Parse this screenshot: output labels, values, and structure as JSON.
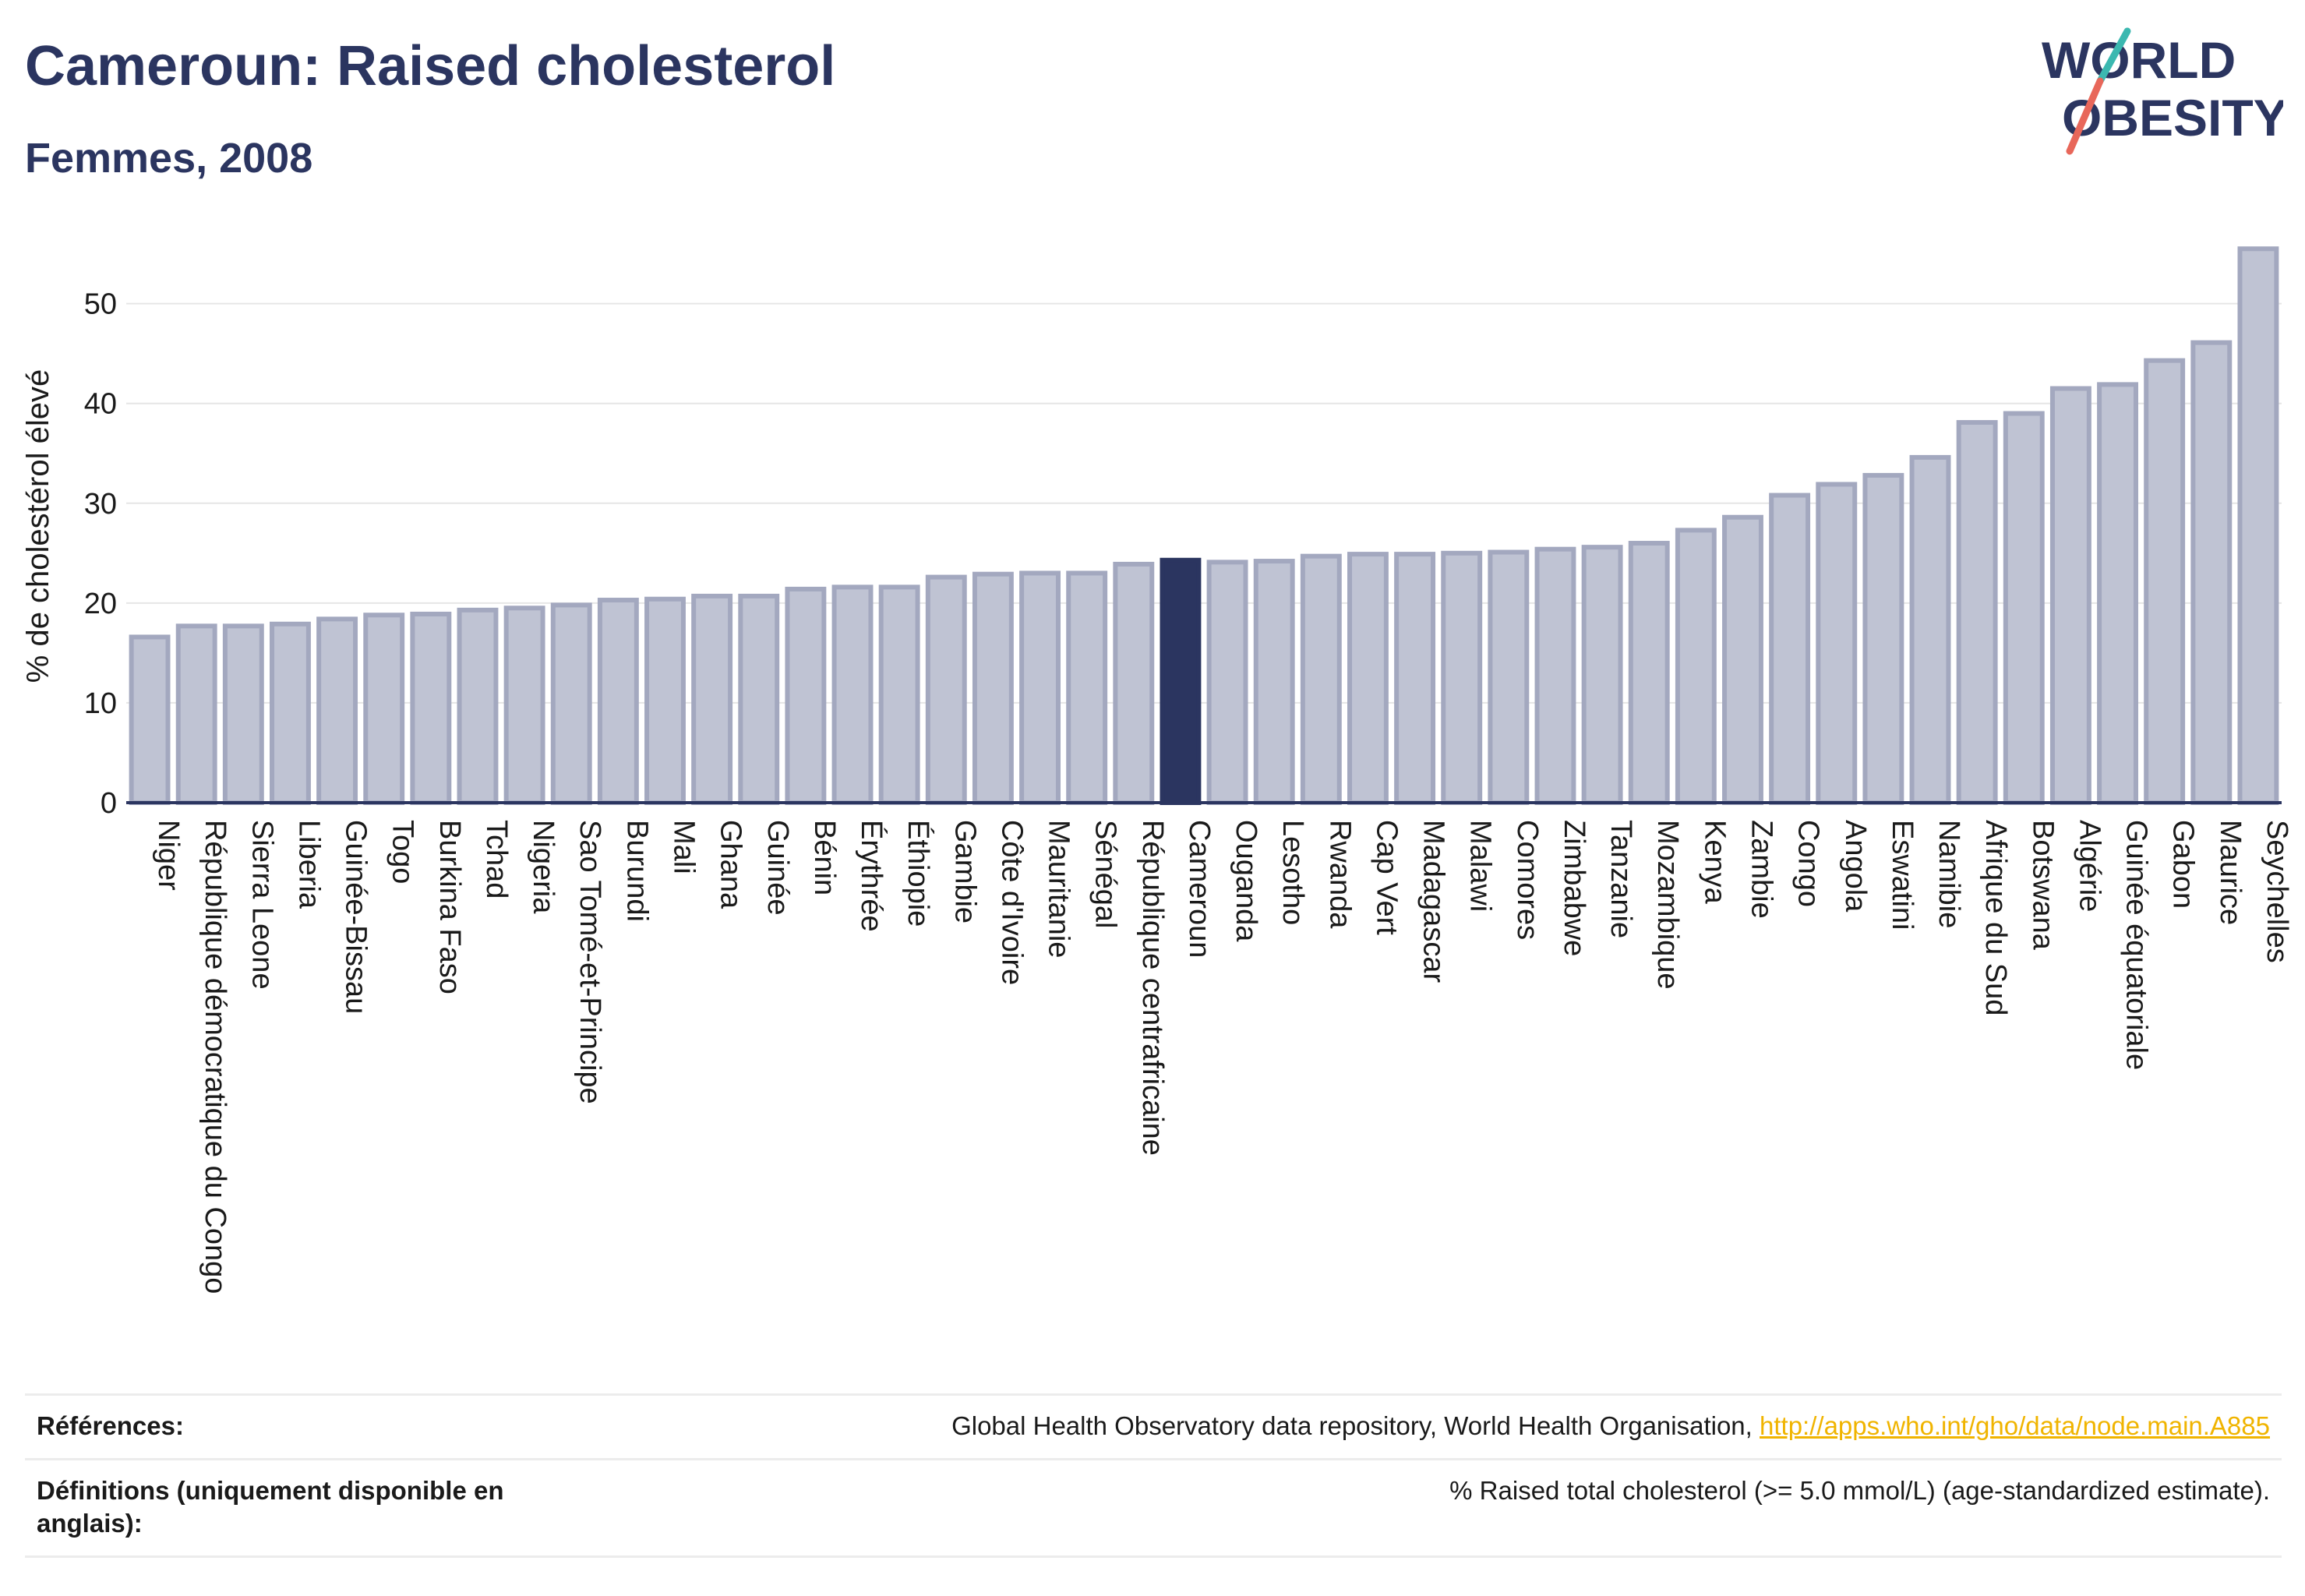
{
  "header": {
    "title": "Cameroun: Raised cholesterol",
    "subtitle": "Femmes, 2008"
  },
  "logo": {
    "line1": "WORLD",
    "line2": "OBESITY"
  },
  "colors": {
    "bar": "#bfc3d3",
    "bar_stroke": "#a3a8bf",
    "highlight": "#2b3560",
    "text": "#1a1a1a",
    "title": "#2b3560",
    "grid": "#e6e6e6",
    "logo_teal": "#3bb8b0",
    "logo_coral": "#e8675a",
    "link": "#f0b400"
  },
  "chart_data": {
    "type": "bar",
    "ylabel": "% de cholestérol élevé",
    "xlabel": "",
    "ylim": [
      0,
      57
    ],
    "yticks": [
      0,
      10,
      20,
      30,
      40,
      50
    ],
    "grid": true,
    "highlight": "Cameroun",
    "categories": [
      "Niger",
      "République démocratique du Congo",
      "Sierra Leone",
      "Liberia",
      "Guinée-Bissau",
      "Togo",
      "Burkina Faso",
      "Tchad",
      "Nigeria",
      "Sao Tomé-et-Principe",
      "Burundi",
      "Mali",
      "Ghana",
      "Guinée",
      "Bénin",
      "Érythrée",
      "Éthiopie",
      "Gambie",
      "Côte d'Ivoire",
      "Mauritanie",
      "Sénégal",
      "République centrafricaine",
      "Cameroun",
      "Ouganda",
      "Lesotho",
      "Rwanda",
      "Cap Vert",
      "Madagascar",
      "Malawi",
      "Comores",
      "Zimbabwe",
      "Tanzanie",
      "Mozambique",
      "Kenya",
      "Zambie",
      "Congo",
      "Angola",
      "Eswatini",
      "Namibie",
      "Afrique du Sud",
      "Botswana",
      "Algérie",
      "Guinée équatoriale",
      "Gabon",
      "Maurice",
      "Seychelles"
    ],
    "values": [
      16.6,
      17.7,
      17.7,
      17.9,
      18.4,
      18.8,
      18.9,
      19.3,
      19.5,
      19.8,
      20.3,
      20.4,
      20.7,
      20.7,
      21.4,
      21.6,
      21.6,
      22.6,
      22.9,
      23.0,
      23.0,
      23.9,
      24.3,
      24.1,
      24.2,
      24.7,
      24.9,
      24.9,
      25.0,
      25.1,
      25.4,
      25.6,
      26.0,
      27.3,
      28.6,
      30.8,
      31.9,
      32.8,
      34.6,
      38.1,
      39.0,
      41.5,
      41.9,
      44.3,
      46.1,
      55.5
    ]
  },
  "references": {
    "label": "Références:",
    "source": "Global Health Observatory data repository, World Health Organisation, ",
    "link": "http://apps.who.int/gho/data/node.main.A885"
  },
  "definitions": {
    "label": "Définitions (uniquement disponible en anglais):",
    "text": "% Raised total cholesterol (>= 5.0 mmol/L) (age-standardized estimate)."
  }
}
